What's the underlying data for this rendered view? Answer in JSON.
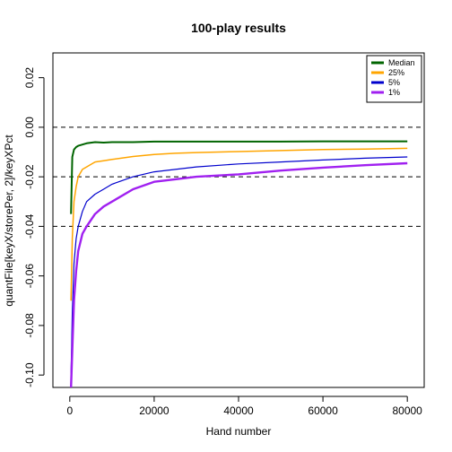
{
  "chart_data": {
    "type": "line",
    "title": "100-play results",
    "xlabel": "Hand number",
    "ylabel": "quantFile[keyX/storePer, 2]/keyXPct",
    "xlim": [
      -4000,
      84000
    ],
    "ylim": [
      -0.105,
      0.03
    ],
    "x_ticks": [
      0,
      20000,
      40000,
      60000,
      80000
    ],
    "x_tick_labels": [
      "0",
      "20000",
      "40000",
      "60000",
      "80000"
    ],
    "y_ticks": [
      -0.1,
      -0.08,
      -0.06,
      -0.04,
      -0.02,
      0.0,
      0.02
    ],
    "y_tick_labels": [
      "-0.10",
      "-0.08",
      "-0.06",
      "-0.04",
      "-0.02",
      "0.00",
      "0.02"
    ],
    "reference_lines": [
      0.0,
      -0.02,
      -0.04
    ],
    "grid": false,
    "legend_position": "top-right",
    "series": [
      {
        "name": "Median",
        "color": "#006400",
        "x": [
          300,
          600,
          1000,
          1500,
          2000,
          3000,
          4000,
          6000,
          8000,
          10000,
          15000,
          20000,
          30000,
          40000,
          50000,
          60000,
          70000,
          80000
        ],
        "values": [
          -0.035,
          -0.012,
          -0.009,
          -0.008,
          -0.0075,
          -0.007,
          -0.0065,
          -0.006,
          -0.0062,
          -0.006,
          -0.006,
          -0.0058,
          -0.0058,
          -0.0058,
          -0.0058,
          -0.0057,
          -0.0057,
          -0.0057
        ]
      },
      {
        "name": "25%",
        "color": "#FFA500",
        "x": [
          300,
          600,
          1000,
          1500,
          2000,
          3000,
          4000,
          6000,
          8000,
          10000,
          15000,
          20000,
          25000,
          30000,
          40000,
          50000,
          60000,
          70000,
          80000
        ],
        "values": [
          -0.07,
          -0.045,
          -0.03,
          -0.024,
          -0.02,
          -0.017,
          -0.016,
          -0.014,
          -0.0135,
          -0.013,
          -0.0118,
          -0.011,
          -0.0105,
          -0.0102,
          -0.0098,
          -0.0094,
          -0.009,
          -0.0088,
          -0.0085
        ]
      },
      {
        "name": "5%",
        "color": "#0000CD",
        "x": [
          300,
          600,
          1000,
          1500,
          2000,
          3000,
          4000,
          6000,
          8000,
          10000,
          15000,
          20000,
          25000,
          30000,
          40000,
          50000,
          60000,
          70000,
          80000
        ],
        "values": [
          -0.1,
          -0.075,
          -0.055,
          -0.045,
          -0.04,
          -0.034,
          -0.03,
          -0.027,
          -0.025,
          -0.023,
          -0.02,
          -0.018,
          -0.017,
          -0.016,
          -0.0148,
          -0.014,
          -0.0132,
          -0.0125,
          -0.012
        ]
      },
      {
        "name": "1%",
        "color": "#A020F0",
        "x": [
          300,
          600,
          1000,
          1500,
          2000,
          3000,
          4000,
          6000,
          8000,
          10000,
          15000,
          20000,
          25000,
          30000,
          40000,
          50000,
          60000,
          70000,
          80000
        ],
        "values": [
          -0.105,
          -0.09,
          -0.07,
          -0.058,
          -0.05,
          -0.043,
          -0.04,
          -0.035,
          -0.032,
          -0.03,
          -0.025,
          -0.022,
          -0.021,
          -0.02,
          -0.019,
          -0.0175,
          -0.0163,
          -0.0153,
          -0.0145
        ]
      }
    ]
  }
}
